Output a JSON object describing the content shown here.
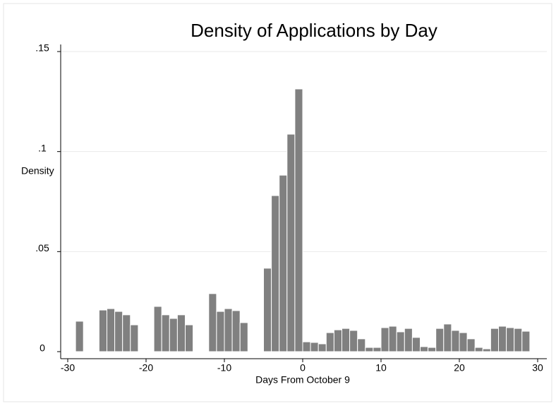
{
  "chart_data": {
    "type": "histogram",
    "title": "Density of Applications by Day",
    "x_label": "Days From October 9",
    "y_label": "Density",
    "bins": [
      -29,
      -28,
      -27,
      -26,
      -25,
      -24,
      -23,
      -22,
      -21,
      -20,
      -19,
      -18,
      -17,
      -16,
      -15,
      -14,
      -13,
      -12,
      -11,
      -10,
      -9,
      -8,
      -7,
      -6,
      -5,
      -4,
      -3,
      -2,
      -1,
      0,
      1,
      2,
      3,
      4,
      5,
      6,
      7,
      8,
      9,
      10,
      11,
      12,
      13,
      14,
      15,
      16,
      17,
      18,
      19,
      20,
      21,
      22,
      23,
      24,
      25,
      26,
      27,
      28,
      29
    ],
    "values": [
      0.0152,
      0,
      0,
      0.0208,
      0.0215,
      0.0201,
      0.0184,
      0.0134,
      0,
      0,
      0.0226,
      0.0184,
      0.0166,
      0.0184,
      0.0134,
      0,
      0,
      0.029,
      0.0201,
      0.0215,
      0.0205,
      0.0145,
      0,
      0,
      0.0417,
      0.078,
      0.0882,
      0.1087,
      0.1313,
      0.0049,
      0.0046,
      0.0039,
      0.0095,
      0.0109,
      0.0116,
      0.0106,
      0.0064,
      0.0021,
      0.0021,
      0.012,
      0.0127,
      0.0099,
      0.0116,
      0.0071,
      0.0025,
      0.0021,
      0.0116,
      0.0138,
      0.0106,
      0.0095,
      0.0064,
      0.0021,
      0.0014,
      0.0116,
      0.0127,
      0.012,
      0.0116,
      0.0102
    ],
    "color": "#808080",
    "xlim": [
      -30,
      30
    ],
    "xticks": [
      -30,
      -20,
      -10,
      0,
      10,
      20,
      30
    ],
    "ylim": [
      0,
      0.15
    ],
    "yticks": [
      0,
      {
        "value": 0.05,
        "label": ".05"
      },
      {
        "value": 0.1,
        "label": ".1"
      },
      {
        "value": 0.15,
        "label": ".15"
      }
    ],
    "grid": true
  }
}
